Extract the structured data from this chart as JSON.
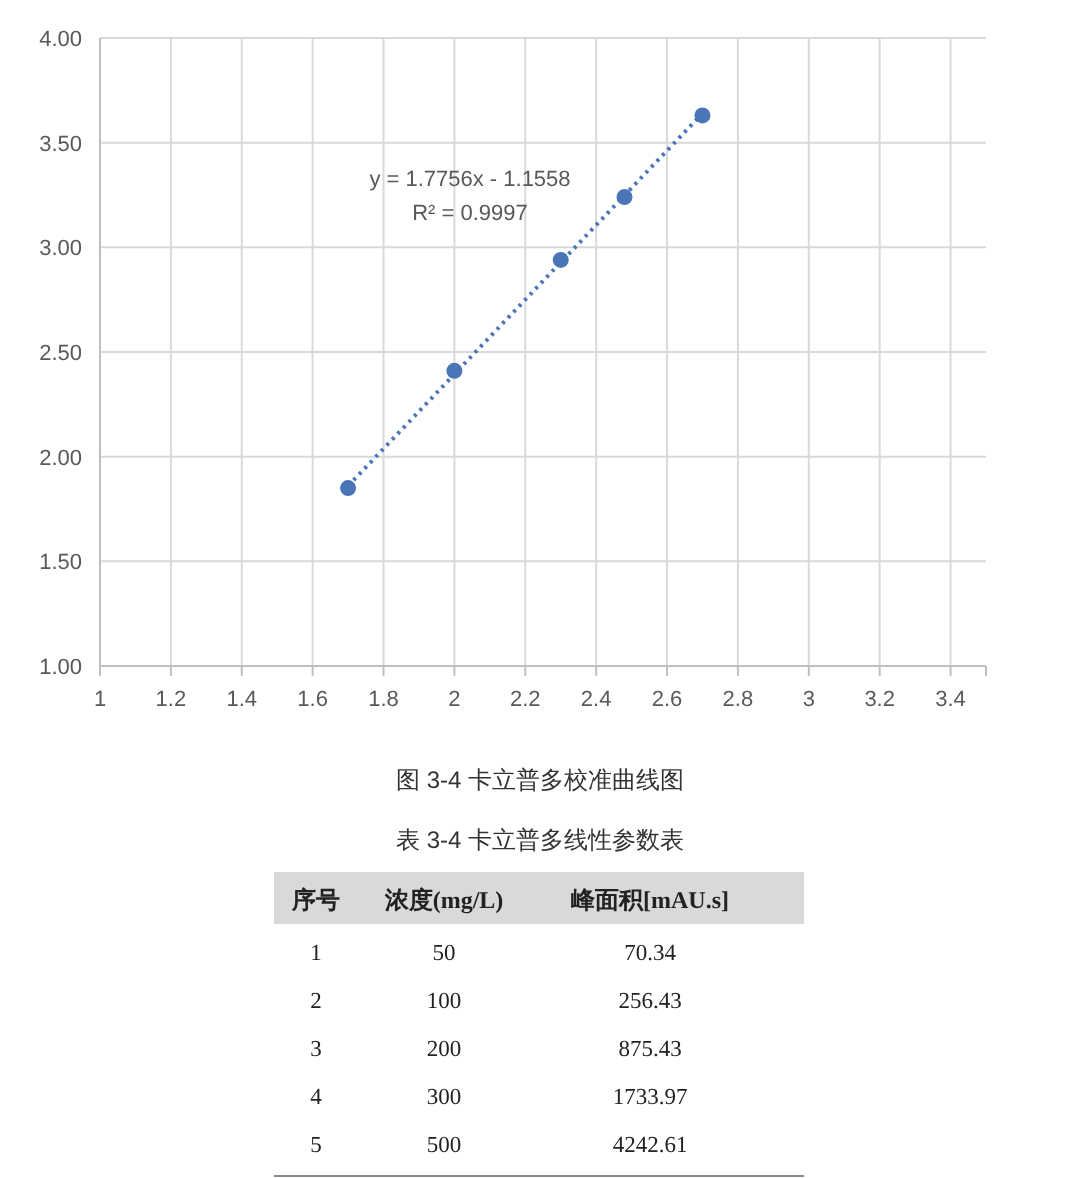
{
  "chart_data": [
    {
      "type": "scatter",
      "x": [
        1.7,
        2.0,
        2.3,
        2.48,
        2.7
      ],
      "values": [
        1.85,
        2.41,
        2.94,
        3.24,
        3.63
      ],
      "color": "#4a76b8",
      "marker": "circle",
      "series": [
        {
          "type": "line",
          "x": [
            1.7,
            2.7
          ],
          "values": [
            1.86,
            3.64
          ],
          "color": "#4a76b8",
          "line_style": "dotted",
          "marker": "none"
        }
      ],
      "xlim": [
        1,
        3.5
      ],
      "xticks": [
        1,
        1.2,
        1.4,
        1.6,
        1.8,
        2,
        2.2,
        2.4,
        2.6,
        2.8,
        3,
        3.2,
        3.4
      ],
      "ylim": [
        1,
        4
      ],
      "yticks": [
        {
          "value": 1,
          "label": "1.00"
        },
        {
          "value": 1.5,
          "label": "1.50"
        },
        {
          "value": 2,
          "label": "2.00"
        },
        {
          "value": 2.5,
          "label": "2.50"
        },
        {
          "value": 3,
          "label": "3.00"
        },
        {
          "value": 3.5,
          "label": "3.50"
        },
        {
          "value": 4,
          "label": "4.00"
        }
      ],
      "grid": true,
      "annotations": [
        "y = 1.7756x - 1.1558",
        "R² = 0.9997",
        "图 3-4   卡立普多校准曲线图"
      ]
    },
    {
      "type": "heatmap",
      "title": "表 3-4   卡立普多线性参数表",
      "ylabel": "序号",
      "categories": [
        "浓度(mg/L)",
        "峰面积[mAU.s]"
      ],
      "y_categories": [
        "1",
        "2",
        "3",
        "4",
        "5"
      ],
      "cells": [
        [
          50,
          70.34
        ],
        [
          100,
          256.43
        ],
        [
          200,
          875.43
        ],
        [
          300,
          1733.97
        ],
        [
          500,
          4242.61
        ]
      ],
      "data_labels": true
    }
  ]
}
